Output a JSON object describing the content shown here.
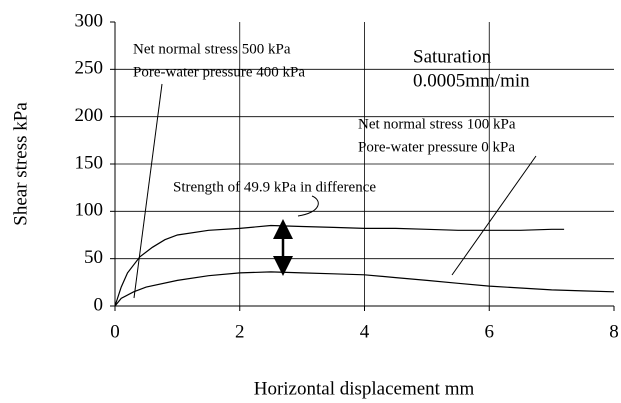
{
  "chart_data": {
    "type": "line",
    "x_label": "Horizontal displacement mm",
    "y_label": "Shear stress kPa",
    "xlim": [
      0,
      8
    ],
    "xticks": [
      0,
      2,
      4,
      6,
      8
    ],
    "ylim": [
      0,
      300
    ],
    "yticks": [
      0,
      50,
      100,
      150,
      200,
      250,
      300
    ],
    "grid": true,
    "series": [
      {
        "color": "#000000",
        "x": [
          0,
          0.1,
          0.2,
          0.4,
          0.6,
          0.8,
          1.0,
          1.5,
          2.0,
          2.5,
          3.0,
          3.5,
          4.0,
          4.5,
          5.0,
          5.5,
          6.0,
          6.5,
          7.0,
          7.2
        ],
        "values": [
          0,
          20,
          35,
          52,
          62,
          70,
          75,
          80,
          82,
          85,
          84,
          83,
          82,
          82,
          81,
          80,
          80,
          80,
          81,
          81
        ]
      },
      {
        "color": "#000000",
        "x": [
          0,
          0.1,
          0.3,
          0.5,
          1.0,
          1.5,
          2.0,
          2.5,
          3.0,
          3.5,
          4.0,
          4.5,
          5.0,
          5.5,
          6.0,
          6.5,
          7.0,
          7.5,
          8.0
        ],
        "values": [
          0,
          8,
          15,
          20,
          27,
          32,
          35,
          36,
          35,
          34,
          33,
          30,
          27,
          24,
          21,
          19,
          17,
          16,
          15
        ]
      }
    ],
    "annotations": [
      "Net normal stress 500 kPa",
      "Pore-water pressure 400 kPa",
      "Saturation",
      "0.0005mm/min",
      "Net normal stress 100 kPa",
      "Pore-water pressure 0 kPa",
      "Strength of 49.9 kPa in difference"
    ]
  }
}
